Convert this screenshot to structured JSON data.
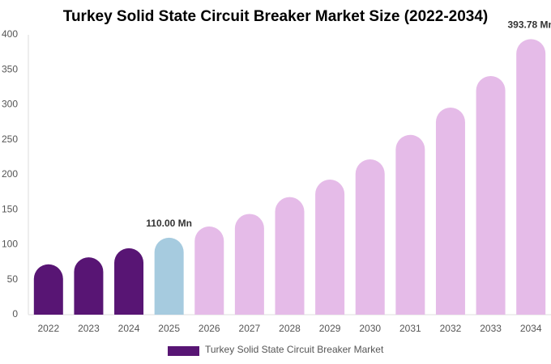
{
  "chart_data": {
    "type": "bar",
    "title": "Turkey Solid State Circuit Breaker Market Size (2022-2034)",
    "categories": [
      "2022",
      "2023",
      "2024",
      "2025",
      "2026",
      "2027",
      "2028",
      "2029",
      "2030",
      "2031",
      "2032",
      "2033",
      "2034"
    ],
    "series": [
      {
        "name": "Turkey Solid State Circuit Breaker Market",
        "color": "#581574",
        "colors": [
          "#581574",
          "#581574",
          "#581574",
          "#a6cbdf",
          "#e5bbe8",
          "#e5bbe8",
          "#e5bbe8",
          "#e5bbe8",
          "#e5bbe8",
          "#e5bbe8",
          "#e5bbe8",
          "#e5bbe8",
          "#e5bbe8"
        ],
        "values": [
          72,
          82,
          95,
          110,
          126,
          144,
          168,
          193,
          222,
          257,
          296,
          341,
          393.78
        ],
        "value_labels": [
          null,
          null,
          null,
          "110.00 Mn",
          null,
          null,
          null,
          null,
          null,
          null,
          null,
          null,
          "393.78 Mn"
        ]
      }
    ],
    "ylim": [
      0,
      400
    ],
    "yticks": [
      0,
      50,
      100,
      150,
      200,
      250,
      300,
      350,
      400
    ],
    "grid": false
  }
}
